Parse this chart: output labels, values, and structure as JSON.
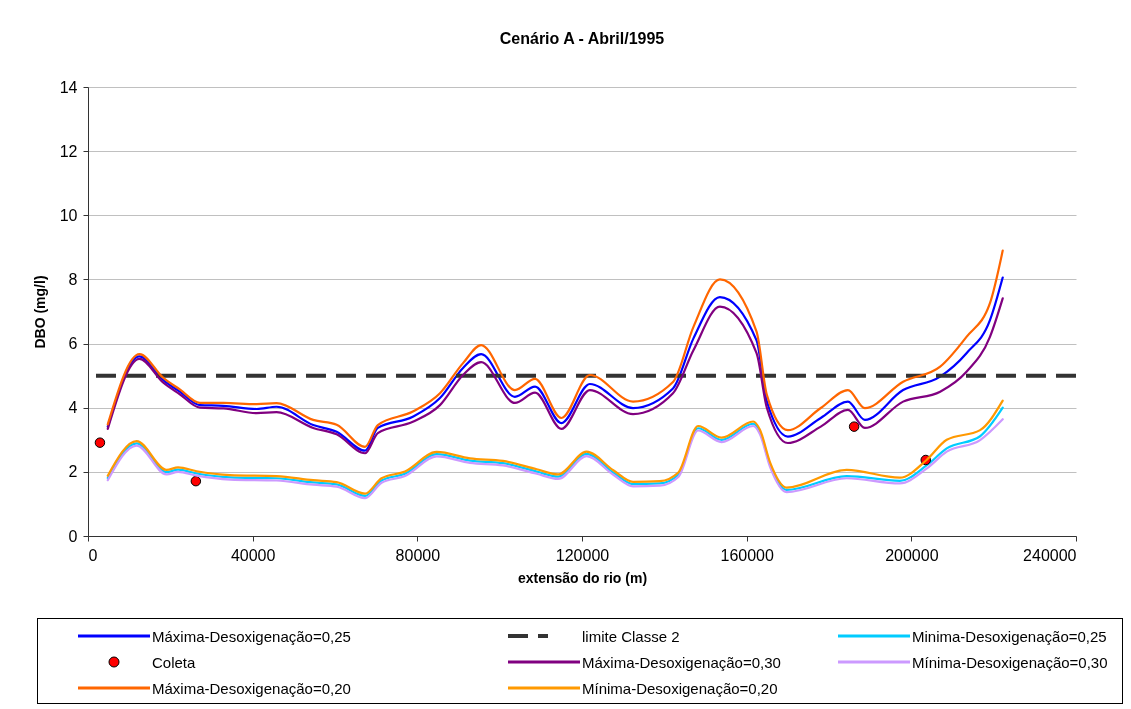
{
  "chart_data": {
    "type": "line",
    "title": "Cenário A - Abril/1995",
    "xlabel": "extensão do rio (m)",
    "ylabel": "DBO (mg/l)",
    "xlim": [
      0,
      240000
    ],
    "xticks": [
      0,
      {
        "value": 40000,
        "label": "40000"
      },
      {
        "value": 80000,
        "label": "80000"
      },
      {
        "value": 120000,
        "label": "120000"
      },
      {
        "value": 160000,
        "label": "160000"
      },
      {
        "value": 200000,
        "label": "200000"
      },
      {
        "value": 240000,
        "label": "240000"
      }
    ],
    "ylim": [
      0,
      14
    ],
    "yticks": [
      0,
      2,
      4,
      6,
      8,
      10,
      12,
      14
    ],
    "grid": "y",
    "legend": "bottom",
    "ref_lines": [
      {
        "axis": "y",
        "value": 5,
        "label": "limite Classe 2",
        "color": "#333333",
        "line_style": "dashed"
      }
    ],
    "series": [
      {
        "name": "Máxima-Desoxigenação=0,25",
        "type": "line",
        "color": "#0000ff",
        "x": [
          4800,
          12500,
          18300,
          22300,
          27200,
          32900,
          41000,
          45800,
          54700,
          60400,
          67300,
          70400,
          78900,
          85500,
          91100,
          95500,
          103700,
          108600,
          115000,
          121900,
          132400,
          142100,
          147100,
          153500,
          162400,
          164900,
          170000,
          178000,
          184600,
          188700,
          198000,
          207000,
          213400,
          219100,
          222200
        ],
        "values": [
          3.41,
          5.6,
          4.86,
          4.5,
          4.08,
          4.06,
          3.96,
          4.03,
          3.46,
          3.25,
          2.66,
          3.37,
          3.72,
          4.3,
          5.24,
          5.67,
          4.34,
          4.66,
          3.52,
          4.74,
          3.99,
          4.6,
          6.17,
          7.45,
          6.1,
          4.2,
          3.1,
          3.68,
          4.19,
          3.62,
          4.55,
          4.97,
          5.7,
          6.73,
          8.06
        ]
      },
      {
        "name": "Minima-Desoxigenação=0,25",
        "type": "line",
        "color": "#00ccff",
        "x": [
          4800,
          11800,
          19100,
          21900,
          26400,
          34500,
          45800,
          54700,
          60400,
          67300,
          71300,
          77000,
          84700,
          92800,
          100800,
          109000,
          114200,
          121100,
          127600,
          132400,
          138900,
          143400,
          148200,
          153900,
          161600,
          163200,
          165700,
          169700,
          184300,
          197200,
          203700,
          208600,
          216700,
          222200
        ],
        "values": [
          1.81,
          2.89,
          1.99,
          2.07,
          1.95,
          1.83,
          1.8,
          1.67,
          1.61,
          1.25,
          1.73,
          1.94,
          2.55,
          2.35,
          2.27,
          2.01,
          1.85,
          2.56,
          1.98,
          1.62,
          1.64,
          1.91,
          3.36,
          3.0,
          3.5,
          3.25,
          2.22,
          1.44,
          1.87,
          1.72,
          2.2,
          2.73,
          3.11,
          4.0
        ]
      },
      {
        "name": "Coleta",
        "type": "scatter",
        "color": "#ff0000",
        "marker": "circle",
        "x": [
          2900,
          26200,
          186100,
          203500
        ],
        "values": [
          2.91,
          1.71,
          3.41,
          2.37
        ]
      },
      {
        "name": "Máxima-Desoxigenação=0,30",
        "type": "line",
        "color": "#800080",
        "x": [
          4800,
          12500,
          18300,
          22300,
          27200,
          32900,
          41000,
          45800,
          54700,
          60400,
          67300,
          70400,
          78900,
          85500,
          91100,
          95500,
          103700,
          108600,
          115000,
          121900,
          132400,
          142100,
          147100,
          153500,
          162400,
          164900,
          170000,
          178000,
          184600,
          188700,
          198000,
          207000,
          213400,
          219100,
          222200
        ],
        "values": [
          3.34,
          5.52,
          4.78,
          4.42,
          4.0,
          3.98,
          3.83,
          3.86,
          3.37,
          3.17,
          2.58,
          3.21,
          3.56,
          4.08,
          5.02,
          5.42,
          4.15,
          4.47,
          3.34,
          4.55,
          3.8,
          4.45,
          5.8,
          7.15,
          5.7,
          4.0,
          2.9,
          3.41,
          3.93,
          3.37,
          4.19,
          4.5,
          5.12,
          6.21,
          7.41
        ]
      },
      {
        "name": "Mínima-Desoxigenação=0,30",
        "type": "line",
        "color": "#cc99ff",
        "x": [
          4800,
          11800,
          19100,
          21900,
          26400,
          34500,
          45800,
          54700,
          60400,
          67300,
          71300,
          77000,
          84700,
          92800,
          100800,
          109000,
          114200,
          121100,
          127600,
          132400,
          138900,
          143400,
          148200,
          153900,
          161600,
          163200,
          165700,
          169700,
          184300,
          197200,
          203700,
          208600,
          216700,
          222200
        ],
        "values": [
          1.74,
          2.82,
          1.92,
          2.0,
          1.88,
          1.76,
          1.73,
          1.6,
          1.54,
          1.18,
          1.66,
          1.87,
          2.48,
          2.28,
          2.2,
          1.94,
          1.78,
          2.49,
          1.91,
          1.55,
          1.57,
          1.84,
          3.29,
          2.93,
          3.43,
          3.18,
          2.15,
          1.37,
          1.8,
          1.64,
          2.1,
          2.63,
          2.99,
          3.64
        ]
      },
      {
        "name": "Máxima-Desoxigenação=0,20",
        "type": "line",
        "color": "#ff6600",
        "x": [
          4800,
          12500,
          18300,
          22300,
          27200,
          32900,
          41000,
          45800,
          54700,
          60400,
          67300,
          70400,
          78900,
          85500,
          91100,
          95500,
          103700,
          108600,
          115000,
          121900,
          132400,
          142100,
          147100,
          153500,
          162400,
          164900,
          170000,
          178000,
          184600,
          188700,
          198000,
          207000,
          213400,
          219100,
          222200
        ],
        "values": [
          3.48,
          5.67,
          4.93,
          4.57,
          4.15,
          4.15,
          4.11,
          4.14,
          3.62,
          3.47,
          2.78,
          3.46,
          3.88,
          4.45,
          5.39,
          5.95,
          4.55,
          4.9,
          3.68,
          5.02,
          4.19,
          4.8,
          6.53,
          8.0,
          6.37,
          4.4,
          3.3,
          3.99,
          4.55,
          3.99,
          4.81,
          5.28,
          6.21,
          7.26,
          8.9
        ]
      },
      {
        "name": "Mínima-Desoxigenação=0,20",
        "type": "line",
        "color": "#ff9900",
        "x": [
          4800,
          11800,
          19100,
          21900,
          26400,
          34500,
          45800,
          54700,
          60400,
          67300,
          71300,
          77000,
          84700,
          92800,
          100800,
          109000,
          114200,
          121100,
          127600,
          132400,
          138900,
          143400,
          148200,
          153900,
          161600,
          163200,
          165700,
          169700,
          184300,
          197200,
          203700,
          208600,
          216700,
          222200
        ],
        "values": [
          1.88,
          2.96,
          2.06,
          2.14,
          2.02,
          1.9,
          1.87,
          1.74,
          1.68,
          1.32,
          1.8,
          2.01,
          2.62,
          2.42,
          2.34,
          2.08,
          1.92,
          2.63,
          2.05,
          1.69,
          1.71,
          1.98,
          3.43,
          3.07,
          3.57,
          3.32,
          2.29,
          1.51,
          2.06,
          1.82,
          2.37,
          3.0,
          3.3,
          4.22
        ]
      }
    ]
  }
}
